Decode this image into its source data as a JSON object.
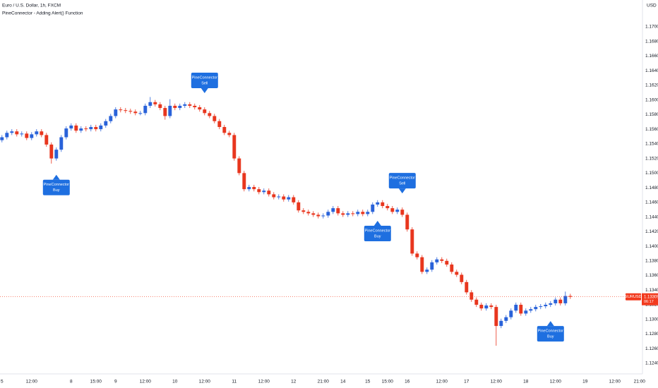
{
  "chart_data": {
    "type": "candlestick",
    "title": "Euro / U.S. Dollar, 1h, FXCM",
    "subtitle": "PineConnector - Adding Alert() Function",
    "y_axis_label": "USD",
    "up_color": "#2962d9",
    "down_color": "#e8361e",
    "ylim": [
      1.12255,
      1.17366
    ],
    "yticks": [
      {
        "value": 1.124,
        "label": "1.12400"
      },
      {
        "value": 1.126,
        "label": "1.12600"
      },
      {
        "value": 1.128,
        "label": "1.12800"
      },
      {
        "value": 1.13,
        "label": "1.13000"
      },
      {
        "value": 1.132,
        "label": "1.13200"
      },
      {
        "value": 1.134,
        "label": "1.13400"
      },
      {
        "value": 1.136,
        "label": "1.13600"
      },
      {
        "value": 1.138,
        "label": "1.13800"
      },
      {
        "value": 1.14,
        "label": "1.14000"
      },
      {
        "value": 1.142,
        "label": "1.14200"
      },
      {
        "value": 1.144,
        "label": "1.14400"
      },
      {
        "value": 1.146,
        "label": "1.14600"
      },
      {
        "value": 1.148,
        "label": "1.14800"
      },
      {
        "value": 1.15,
        "label": "1.15000"
      },
      {
        "value": 1.152,
        "label": "1.15200"
      },
      {
        "value": 1.154,
        "label": "1.15400"
      },
      {
        "value": 1.156,
        "label": "1.15600"
      },
      {
        "value": 1.158,
        "label": "1.15800"
      },
      {
        "value": 1.16,
        "label": "1.16000"
      },
      {
        "value": 1.162,
        "label": "1.16200"
      },
      {
        "value": 1.164,
        "label": "1.16400"
      },
      {
        "value": 1.166,
        "label": "1.16600"
      },
      {
        "value": 1.168,
        "label": "1.16800"
      },
      {
        "value": 1.17,
        "label": "1.17000"
      }
    ],
    "xlim": [
      -0.4,
      129.6
    ],
    "xticks": [
      {
        "value": 0,
        "label": "5"
      },
      {
        "value": 6,
        "label": "12:00"
      },
      {
        "value": 14,
        "label": "8"
      },
      {
        "value": 19,
        "label": "15:00"
      },
      {
        "value": 23,
        "label": "9"
      },
      {
        "value": 29,
        "label": "12:00"
      },
      {
        "value": 35,
        "label": "10"
      },
      {
        "value": 41,
        "label": "12:00"
      },
      {
        "value": 47,
        "label": "11"
      },
      {
        "value": 53,
        "label": "12:00"
      },
      {
        "value": 59,
        "label": "12"
      },
      {
        "value": 65,
        "label": "21:00"
      },
      {
        "value": 69,
        "label": "14"
      },
      {
        "value": 74,
        "label": "15"
      },
      {
        "value": 78,
        "label": "15:00"
      },
      {
        "value": 82,
        "label": "16"
      },
      {
        "value": 89,
        "label": "12:00"
      },
      {
        "value": 94,
        "label": "17"
      },
      {
        "value": 100,
        "label": "12:00"
      },
      {
        "value": 106,
        "label": "18"
      },
      {
        "value": 112,
        "label": "12:00"
      },
      {
        "value": 118,
        "label": "19"
      },
      {
        "value": 124,
        "label": "12:00"
      },
      {
        "value": 129,
        "label": "21:00"
      }
    ],
    "open": [
      1.1545,
      1.1549,
      1.1555,
      1.1557,
      1.1553,
      1.1554,
      1.1548,
      1.1553,
      1.1557,
      1.1552,
      1.1539,
      1.152,
      1.1532,
      1.1549,
      1.1561,
      1.1565,
      1.1558,
      1.1561,
      1.156,
      1.1563,
      1.156,
      1.1565,
      1.1571,
      1.1578,
      1.1587,
      1.1586,
      1.1585,
      1.1584,
      1.1582,
      1.1582,
      1.1592,
      1.1597,
      1.1594,
      1.1589,
      1.1578,
      1.1592,
      1.1589,
      1.1592,
      1.1594,
      1.1592,
      1.159,
      1.1587,
      1.1582,
      1.1578,
      1.1571,
      1.1563,
      1.1555,
      1.1552,
      1.152,
      1.15,
      1.1478,
      1.1481,
      1.1478,
      1.1474,
      1.1476,
      1.1471,
      1.1467,
      1.1468,
      1.1464,
      1.1467,
      1.146,
      1.1449,
      1.1447,
      1.1445,
      1.1443,
      1.1441,
      1.1442,
      1.1447,
      1.1452,
      1.1445,
      1.1443,
      1.1445,
      1.1444,
      1.1447,
      1.1444,
      1.1447,
      1.1457,
      1.146,
      1.1455,
      1.1452,
      1.1447,
      1.145,
      1.1443,
      1.1423,
      1.139,
      1.1385,
      1.1365,
      1.1368,
      1.1378,
      1.1382,
      1.138,
      1.1375,
      1.1365,
      1.1361,
      1.1351,
      1.1337,
      1.1327,
      1.132,
      1.1315,
      1.1319,
      1.1317,
      1.1291,
      1.1298,
      1.1303,
      1.1312,
      1.132,
      1.1308,
      1.1312,
      1.1314,
      1.1317,
      1.1318,
      1.132,
      1.1322,
      1.1327,
      1.1322,
      1.1332
    ],
    "high": [
      1.1552,
      1.1558,
      1.156,
      1.156,
      1.1557,
      1.1557,
      1.1556,
      1.156,
      1.156,
      1.1555,
      1.1542,
      1.1535,
      1.1552,
      1.1564,
      1.1568,
      1.1568,
      1.1564,
      1.1564,
      1.1566,
      1.1566,
      1.1568,
      1.1574,
      1.1581,
      1.159,
      1.159,
      1.1589,
      1.1588,
      1.1587,
      1.1585,
      1.1595,
      1.1604,
      1.16,
      1.1597,
      1.1592,
      1.1601,
      1.1595,
      1.1595,
      1.1597,
      1.1597,
      1.1595,
      1.1593,
      1.159,
      1.1585,
      1.1581,
      1.1574,
      1.1566,
      1.1558,
      1.1555,
      1.1523,
      1.1503,
      1.1484,
      1.1484,
      1.1481,
      1.1479,
      1.1479,
      1.1474,
      1.1471,
      1.1471,
      1.147,
      1.147,
      1.1463,
      1.1452,
      1.145,
      1.1448,
      1.1446,
      1.1445,
      1.145,
      1.1455,
      1.1455,
      1.1448,
      1.1448,
      1.1448,
      1.145,
      1.145,
      1.145,
      1.146,
      1.1463,
      1.1463,
      1.1458,
      1.1455,
      1.1453,
      1.1453,
      1.1446,
      1.1426,
      1.1393,
      1.1388,
      1.1371,
      1.1381,
      1.1385,
      1.1385,
      1.1383,
      1.1378,
      1.1368,
      1.1364,
      1.1354,
      1.134,
      1.133,
      1.1323,
      1.1322,
      1.1322,
      1.132,
      1.1301,
      1.1306,
      1.1315,
      1.1323,
      1.1323,
      1.1315,
      1.1317,
      1.132,
      1.1321,
      1.1323,
      1.1325,
      1.133,
      1.133,
      1.1338,
      1.1335
    ],
    "low": [
      1.1542,
      1.1546,
      1.1552,
      1.155,
      1.155,
      1.1545,
      1.1545,
      1.155,
      1.1549,
      1.1536,
      1.1513,
      1.1517,
      1.1529,
      1.1546,
      1.1558,
      1.1555,
      1.1555,
      1.1557,
      1.1557,
      1.1557,
      1.1557,
      1.1562,
      1.1568,
      1.1575,
      1.1583,
      1.1582,
      1.1581,
      1.1579,
      1.1579,
      1.1579,
      1.1589,
      1.1591,
      1.1586,
      1.1573,
      1.1575,
      1.1586,
      1.1586,
      1.1589,
      1.1589,
      1.1587,
      1.1584,
      1.1579,
      1.1575,
      1.1568,
      1.156,
      1.1552,
      1.1549,
      1.1517,
      1.1497,
      1.1475,
      1.1475,
      1.1475,
      1.1471,
      1.1471,
      1.1468,
      1.1464,
      1.1464,
      1.1461,
      1.1461,
      1.1457,
      1.1446,
      1.1444,
      1.1442,
      1.144,
      1.1438,
      1.1438,
      1.1439,
      1.1444,
      1.1442,
      1.144,
      1.144,
      1.1441,
      1.1441,
      1.1441,
      1.1441,
      1.1444,
      1.1454,
      1.1452,
      1.1449,
      1.1444,
      1.1444,
      1.144,
      1.142,
      1.1387,
      1.1382,
      1.1362,
      1.1362,
      1.1365,
      1.1375,
      1.1377,
      1.1372,
      1.1362,
      1.1358,
      1.1348,
      1.1334,
      1.1324,
      1.1317,
      1.1312,
      1.1312,
      1.1314,
      1.1264,
      1.1288,
      1.1295,
      1.13,
      1.1309,
      1.1305,
      1.1305,
      1.1309,
      1.1311,
      1.1314,
      1.1315,
      1.1317,
      1.1319,
      1.1319,
      1.1319,
      1.1328
    ],
    "close": [
      1.1549,
      1.1555,
      1.1557,
      1.1553,
      1.1554,
      1.1548,
      1.1553,
      1.1557,
      1.1552,
      1.1539,
      1.152,
      1.1532,
      1.1549,
      1.1561,
      1.1565,
      1.1558,
      1.1561,
      1.156,
      1.1563,
      1.156,
      1.1565,
      1.1571,
      1.1578,
      1.1587,
      1.1586,
      1.1585,
      1.1584,
      1.1582,
      1.1582,
      1.1592,
      1.1597,
      1.1594,
      1.1589,
      1.1578,
      1.1592,
      1.1589,
      1.1592,
      1.1594,
      1.1592,
      1.159,
      1.1587,
      1.1582,
      1.1578,
      1.1571,
      1.1563,
      1.1555,
      1.1552,
      1.152,
      1.15,
      1.1478,
      1.1481,
      1.1478,
      1.1474,
      1.1476,
      1.1471,
      1.1467,
      1.1468,
      1.1464,
      1.1467,
      1.146,
      1.1449,
      1.1447,
      1.1445,
      1.1443,
      1.1441,
      1.1442,
      1.1447,
      1.1452,
      1.1445,
      1.1443,
      1.1445,
      1.1444,
      1.1447,
      1.1444,
      1.1447,
      1.1457,
      1.146,
      1.1455,
      1.1452,
      1.1447,
      1.145,
      1.1443,
      1.1423,
      1.139,
      1.1385,
      1.1365,
      1.1368,
      1.1378,
      1.1382,
      1.138,
      1.1375,
      1.1365,
      1.1361,
      1.1351,
      1.1337,
      1.1327,
      1.132,
      1.1315,
      1.1319,
      1.1317,
      1.1291,
      1.1298,
      1.1303,
      1.1312,
      1.132,
      1.1308,
      1.1312,
      1.1314,
      1.1317,
      1.1318,
      1.132,
      1.1322,
      1.1327,
      1.1322,
      1.1332,
      1.13309
    ],
    "last_price": {
      "symbol": "EURUSD",
      "value": 1.13309,
      "countdown": "06:17",
      "color": "#f23a1e"
    },
    "annotations": [
      {
        "index": 11,
        "position": "below",
        "lines": [
          "PineConnector",
          "Buy"
        ]
      },
      {
        "index": 41,
        "position": "above",
        "lines": [
          "PineConnector",
          "Sell"
        ]
      },
      {
        "index": 76,
        "position": "below",
        "lines": [
          "PineConnector",
          "Buy"
        ]
      },
      {
        "index": 81,
        "position": "above",
        "lines": [
          "PineConnector",
          "Sell"
        ]
      },
      {
        "index": 111,
        "position": "below",
        "lines": [
          "PineConnector",
          "Buy"
        ]
      }
    ],
    "annotation_color": "#1e6fe0"
  }
}
